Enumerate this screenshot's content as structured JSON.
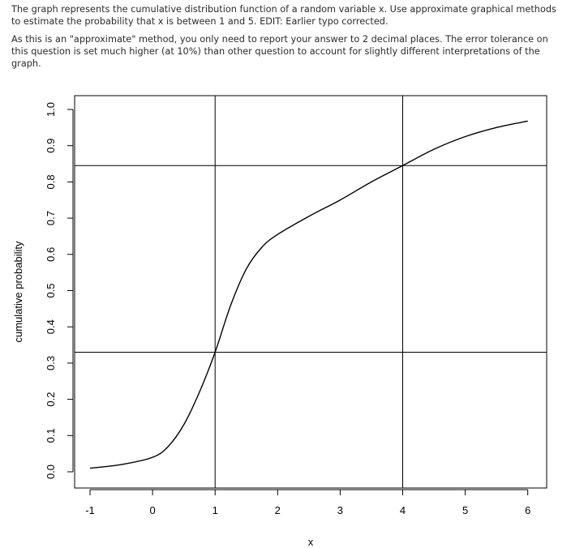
{
  "question": {
    "paragraph1": "The graph represents the cumulative distribution function of a random variable x. Use approximate graphical methods to estimate the probability that x is between 1 and 5. EDIT: Earlier typo corrected.",
    "paragraph2": "As this is an \"approximate\" method, you only need to report your answer to 2 decimal places.  The error tolerance on this question is set much higher (at 10%) than other question to account for slightly different interpretations of the graph."
  },
  "chart_data": {
    "type": "line",
    "title": "",
    "xlabel": "x",
    "ylabel": "cumulative probability",
    "xlim": [
      -1,
      6
    ],
    "ylim": [
      0,
      1
    ],
    "xticks": [
      -1,
      0,
      1,
      2,
      3,
      4,
      5,
      6
    ],
    "xtick_labels": [
      "-1",
      "0",
      "1",
      "2",
      "3",
      "4",
      "5",
      "6"
    ],
    "yticks": [
      0,
      0.1,
      0.2,
      0.3,
      0.4,
      0.5,
      0.6,
      0.7,
      0.8,
      0.9,
      1.0
    ],
    "ytick_labels": [
      "0.0",
      "0.1",
      "0.2",
      "0.3",
      "0.4",
      "0.5",
      "0.6",
      "0.7",
      "0.8",
      "0.9",
      "1.0"
    ],
    "grid": false,
    "legend": "none",
    "series": [
      {
        "x": [
          -1,
          -0.5,
          0,
          0.25,
          0.5,
          0.75,
          1,
          1.25,
          1.5,
          1.75,
          2,
          2.5,
          3,
          3.5,
          4,
          4.5,
          5,
          5.5,
          6
        ],
        "y": [
          0.01,
          0.02,
          0.04,
          0.07,
          0.13,
          0.22,
          0.33,
          0.46,
          0.56,
          0.62,
          0.655,
          0.705,
          0.75,
          0.8,
          0.845,
          0.89,
          0.925,
          0.95,
          0.968
        ]
      }
    ],
    "reference_lines": {
      "vertical_x": [
        1,
        4
      ],
      "horizontal_y": [
        0.33,
        0.845
      ]
    },
    "colors": {
      "line": "#000000",
      "reference": "#000000"
    }
  }
}
